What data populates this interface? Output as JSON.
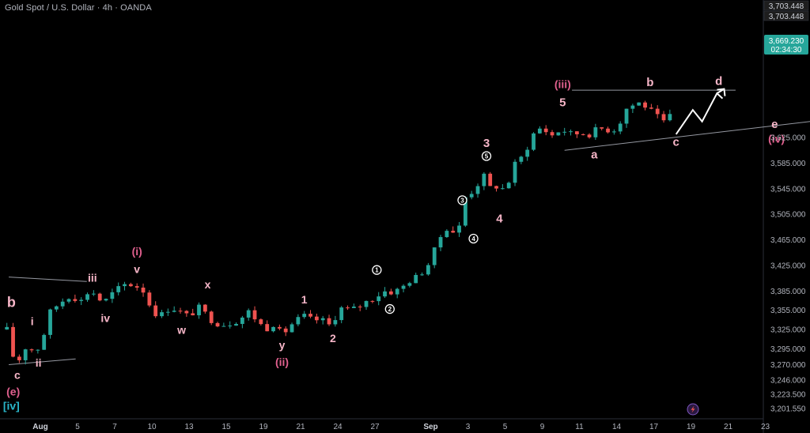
{
  "header": {
    "title": "Gold Spot / U.S. Dollar · 4h · OANDA"
  },
  "colors": {
    "up": "#26a69a",
    "down": "#ef5350",
    "wave_pink": "#f7b6c8",
    "wave_magenta": "#e0608e",
    "wave_teal": "#2ab6c9",
    "line": "#9598a1",
    "current_price_bg": "#26a69a"
  },
  "price_tags": {
    "high_1": "3,703.448",
    "high_2": "3,703.448",
    "current": "3,669.230",
    "countdown": "02:34:30"
  },
  "chart_data": {
    "type": "candlestick",
    "title": "Gold Spot / U.S. Dollar · 4h · OANDA",
    "ylim": [
      3192,
      3712
    ],
    "xlim": [
      0,
      24
    ],
    "y_ticks": [
      3201.55,
      3223.5,
      3246.0,
      3270.0,
      3295.0,
      3325.0,
      3355.0,
      3385.0,
      3425.0,
      3465.0,
      3505.0,
      3545.0,
      3585.0,
      3625.0
    ],
    "y_tick_labels": [
      "3,201.550",
      "3,223.500",
      "3,246.000",
      "3,270.000",
      "3,295.000",
      "3,325.000",
      "3,355.000",
      "3,385.000",
      "3,425.000",
      "3,465.000",
      "3,505.000",
      "3,545.000",
      "3,585.000",
      "3,625.000"
    ],
    "x_ticks": [
      {
        "x": 0.0,
        "label": "Aug",
        "month": true
      },
      {
        "x": 1.0,
        "label": "5"
      },
      {
        "x": 2.0,
        "label": "7"
      },
      {
        "x": 3.0,
        "label": "10"
      },
      {
        "x": 4.0,
        "label": "13"
      },
      {
        "x": 5.0,
        "label": "15"
      },
      {
        "x": 6.0,
        "label": "19"
      },
      {
        "x": 7.0,
        "label": "21"
      },
      {
        "x": 8.0,
        "label": "24"
      },
      {
        "x": 9.0,
        "label": "27"
      },
      {
        "x": 10.5,
        "label": "Sep",
        "month": true
      },
      {
        "x": 11.5,
        "label": "3"
      },
      {
        "x": 12.5,
        "label": "5"
      },
      {
        "x": 13.5,
        "label": "9"
      },
      {
        "x": 14.5,
        "label": "11"
      },
      {
        "x": 15.5,
        "label": "14"
      },
      {
        "x": 16.5,
        "label": "17"
      },
      {
        "x": 17.5,
        "label": "19"
      },
      {
        "x": 18.5,
        "label": "21"
      },
      {
        "x": 19.5,
        "label": "23"
      }
    ],
    "price_path": [
      [
        -0.9,
        3325
      ],
      [
        -0.75,
        3285
      ],
      [
        -0.6,
        3272
      ],
      [
        -0.45,
        3300
      ],
      [
        -0.3,
        3290
      ],
      [
        -0.15,
        3298
      ],
      [
        0.05,
        3292
      ],
      [
        0.15,
        3345
      ],
      [
        0.35,
        3358
      ],
      [
        0.6,
        3370
      ],
      [
        0.85,
        3380
      ],
      [
        1.05,
        3366
      ],
      [
        1.25,
        3382
      ],
      [
        1.4,
        3385
      ],
      [
        1.55,
        3372
      ],
      [
        1.75,
        3370
      ],
      [
        2.0,
        3385
      ],
      [
        2.25,
        3395
      ],
      [
        2.45,
        3395
      ],
      [
        2.7,
        3390
      ],
      [
        2.85,
        3380
      ],
      [
        3.0,
        3352
      ],
      [
        3.25,
        3348
      ],
      [
        3.5,
        3360
      ],
      [
        3.75,
        3353
      ],
      [
        4.0,
        3345
      ],
      [
        4.25,
        3360
      ],
      [
        4.4,
        3352
      ],
      [
        4.6,
        3340
      ],
      [
        4.85,
        3332
      ],
      [
        5.1,
        3335
      ],
      [
        5.35,
        3340
      ],
      [
        5.6,
        3353
      ],
      [
        5.85,
        3338
      ],
      [
        6.05,
        3325
      ],
      [
        6.3,
        3335
      ],
      [
        6.5,
        3315
      ],
      [
        6.7,
        3330
      ],
      [
        6.9,
        3340
      ],
      [
        7.1,
        3346
      ],
      [
        7.3,
        3340
      ],
      [
        7.5,
        3340
      ],
      [
        7.7,
        3338
      ],
      [
        7.85,
        3325
      ],
      [
        8.0,
        3360
      ],
      [
        8.25,
        3356
      ],
      [
        8.5,
        3358
      ],
      [
        8.75,
        3368
      ],
      [
        9.0,
        3375
      ],
      [
        9.25,
        3385
      ],
      [
        9.5,
        3383
      ],
      [
        9.75,
        3392
      ],
      [
        9.95,
        3402
      ],
      [
        10.2,
        3410
      ],
      [
        10.5,
        3432
      ],
      [
        10.7,
        3465
      ],
      [
        10.95,
        3485
      ],
      [
        11.1,
        3478
      ],
      [
        11.25,
        3480
      ],
      [
        11.4,
        3530
      ],
      [
        11.6,
        3540
      ],
      [
        11.75,
        3550
      ],
      [
        11.9,
        3570
      ],
      [
        12.05,
        3545
      ],
      [
        12.2,
        3550
      ],
      [
        12.45,
        3545
      ],
      [
        12.65,
        3560
      ],
      [
        12.8,
        3590
      ],
      [
        13.0,
        3595
      ],
      [
        13.2,
        3625
      ],
      [
        13.35,
        3638
      ],
      [
        13.55,
        3640
      ],
      [
        13.7,
        3625
      ],
      [
        13.85,
        3633
      ],
      [
        14.05,
        3637
      ],
      [
        14.3,
        3630
      ],
      [
        14.55,
        3632
      ],
      [
        14.8,
        3630
      ],
      [
        15.0,
        3640
      ],
      [
        15.2,
        3638
      ],
      [
        15.4,
        3635
      ],
      [
        15.6,
        3650
      ],
      [
        15.75,
        3670
      ],
      [
        15.95,
        3676
      ],
      [
        16.15,
        3680
      ],
      [
        16.35,
        3670
      ],
      [
        16.55,
        3660
      ],
      [
        16.75,
        3648
      ],
      [
        16.95,
        3659
      ],
      [
        17.05,
        3667
      ]
    ],
    "trendlines": [
      {
        "name": "lower-channel-left",
        "x1": -0.85,
        "y1": 3270,
        "x2": 0.95,
        "y2": 3279
      },
      {
        "name": "upper-channel-left",
        "x1": -0.85,
        "y1": 3407,
        "x2": 1.25,
        "y2": 3400
      },
      {
        "name": "resistance-top",
        "x1": 14.3,
        "y1": 3699,
        "x2": 18.7,
        "y2": 3699
      },
      {
        "name": "support-triangle",
        "x1": 14.1,
        "y1": 3605,
        "x2": 21.0,
        "y2": 3652
      }
    ],
    "projection_path": [
      [
        17.1,
        3630
      ],
      [
        17.55,
        3668
      ],
      [
        17.8,
        3650
      ],
      [
        18.2,
        3694
      ],
      [
        18.35,
        3686
      ]
    ],
    "wave_labels": [
      {
        "text": "b",
        "x": -0.78,
        "y": 3360,
        "color": "pink",
        "size": 18
      },
      {
        "text": "c",
        "x": -0.62,
        "y": 3248,
        "color": "pink",
        "size": 14
      },
      {
        "text": "(e)",
        "x": -0.73,
        "y": 3222,
        "color": "magenta",
        "size": 14
      },
      {
        "text": "[iv]",
        "x": -0.78,
        "y": 3200,
        "color": "teal",
        "size": 14
      },
      {
        "text": "i",
        "x": -0.22,
        "y": 3332,
        "color": "pink",
        "size": 14
      },
      {
        "text": "ii",
        "x": -0.05,
        "y": 3267,
        "color": "pink",
        "size": 14
      },
      {
        "text": "iii",
        "x": 1.4,
        "y": 3400,
        "color": "pink",
        "size": 14
      },
      {
        "text": "iv",
        "x": 1.75,
        "y": 3337,
        "color": "pink",
        "size": 14
      },
      {
        "text": "v",
        "x": 2.6,
        "y": 3413,
        "color": "pink",
        "size": 14
      },
      {
        "text": "(i)",
        "x": 2.6,
        "y": 3441,
        "color": "magenta",
        "size": 14
      },
      {
        "text": "w",
        "x": 3.8,
        "y": 3318,
        "color": "pink",
        "size": 14
      },
      {
        "text": "x",
        "x": 4.5,
        "y": 3389,
        "color": "pink",
        "size": 14
      },
      {
        "text": "y",
        "x": 6.5,
        "y": 3295,
        "color": "pink",
        "size": 14
      },
      {
        "text": "(ii)",
        "x": 6.5,
        "y": 3268,
        "color": "magenta",
        "size": 14
      },
      {
        "text": "1",
        "x": 7.1,
        "y": 3366,
        "color": "pink",
        "size": 14
      },
      {
        "text": "2",
        "x": 7.87,
        "y": 3305,
        "color": "pink",
        "size": 14
      },
      {
        "text": "3",
        "x": 12.0,
        "y": 3610,
        "color": "pink",
        "size": 15
      },
      {
        "text": "4",
        "x": 12.35,
        "y": 3492,
        "color": "pink",
        "size": 15
      },
      {
        "text": "5",
        "x": 14.05,
        "y": 3674,
        "color": "pink",
        "size": 15
      },
      {
        "text": "(iii)",
        "x": 14.05,
        "y": 3702,
        "color": "magenta",
        "size": 14
      },
      {
        "text": "a",
        "x": 14.9,
        "y": 3592,
        "color": "pink",
        "size": 15
      },
      {
        "text": "b",
        "x": 16.4,
        "y": 3705,
        "color": "pink",
        "size": 15
      },
      {
        "text": "c",
        "x": 17.1,
        "y": 3612,
        "color": "pink",
        "size": 15
      },
      {
        "text": "d",
        "x": 18.25,
        "y": 3707,
        "color": "pink",
        "size": 15
      },
      {
        "text": "e",
        "x": 19.75,
        "y": 3640,
        "color": "pink",
        "size": 15
      },
      {
        "text": "(iv)",
        "x": 19.8,
        "y": 3617,
        "color": "magenta",
        "size": 14
      }
    ],
    "circle_labels": [
      {
        "text": "1",
        "x": 9.05,
        "y": 3418
      },
      {
        "text": "2",
        "x": 9.4,
        "y": 3357
      },
      {
        "text": "3",
        "x": 11.35,
        "y": 3527
      },
      {
        "text": "4",
        "x": 11.65,
        "y": 3467
      },
      {
        "text": "5",
        "x": 12.0,
        "y": 3596
      }
    ]
  }
}
